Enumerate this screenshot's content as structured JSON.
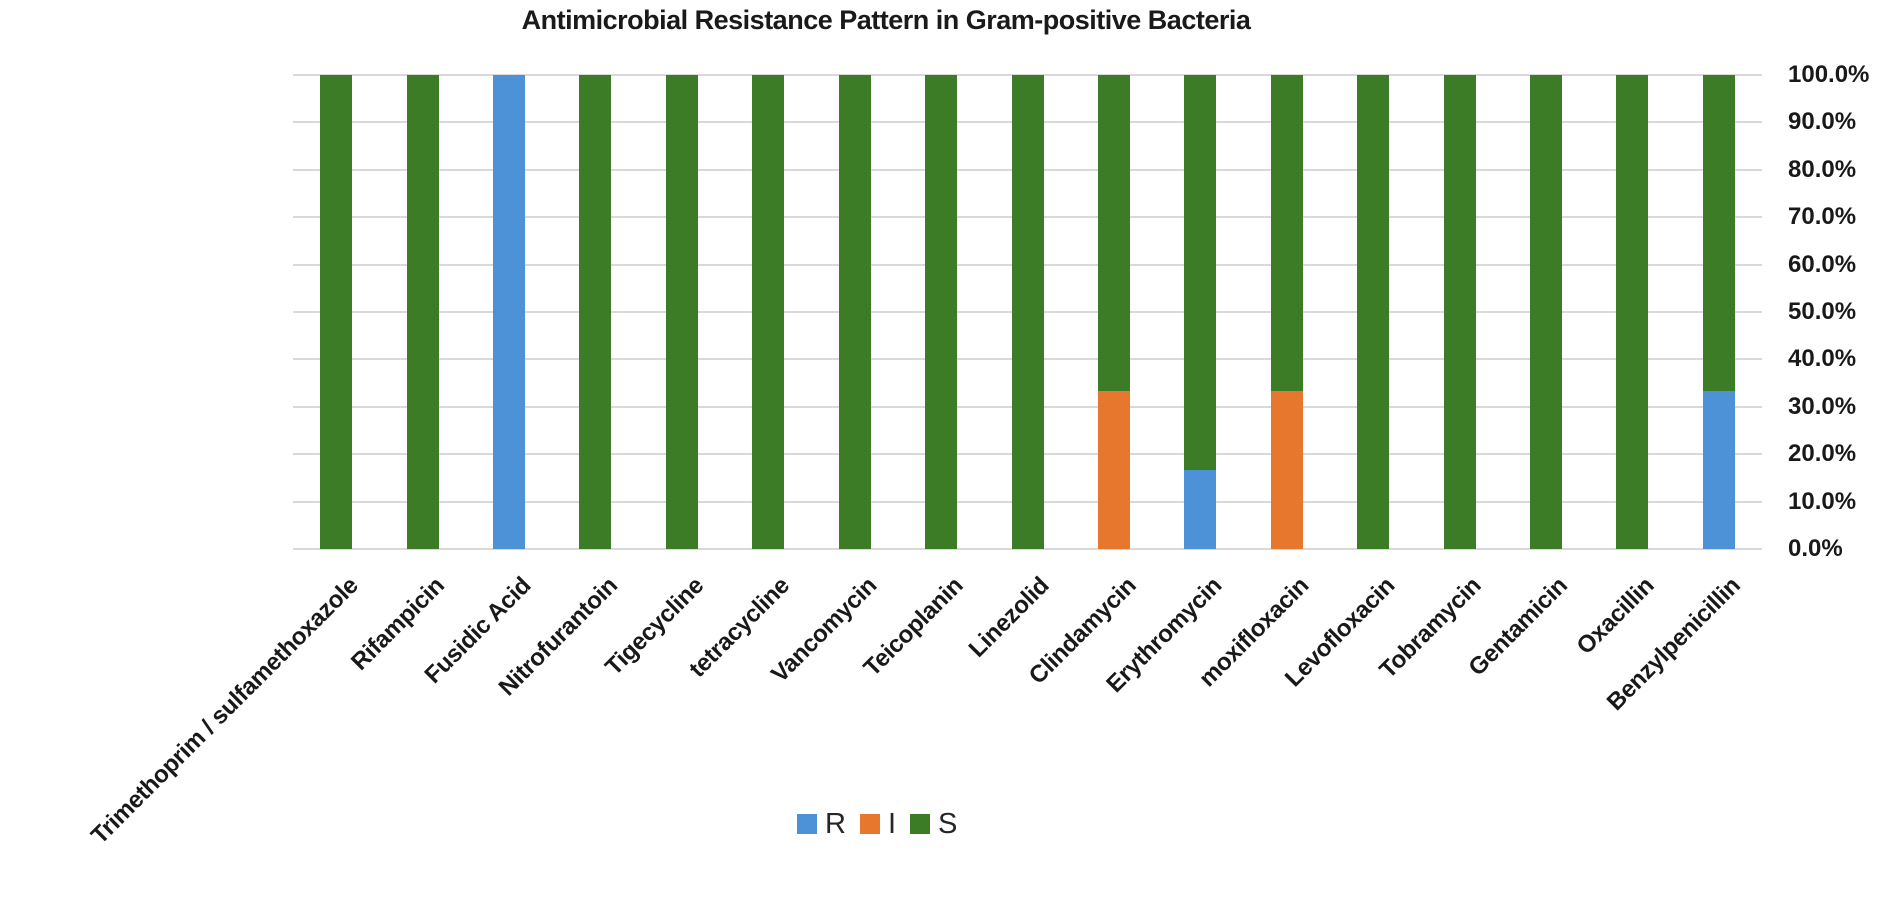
{
  "chart_data": {
    "type": "bar",
    "stacked": true,
    "title": "Antimicrobial Resistance Pattern in Gram-positive Bacteria",
    "categories": [
      "Trimethoprim / sulfamethoxazole",
      "Rifampicin",
      "Fusidic Acid",
      "Nitrofurantoin",
      "Tigecycline",
      "tetracycline",
      "Vancomycin",
      "Teicoplanin",
      "Linezolid",
      "Clindamycin",
      "Erythromycin",
      "moxifloxacin",
      "Levofloxacin",
      "Tobramycin",
      "Gentamicin",
      "Oxacillin",
      "Benzylpenicillin"
    ],
    "series": [
      {
        "name": "R",
        "color": "#4d92d6",
        "values": [
          0,
          0,
          100,
          0,
          0,
          0,
          0,
          0,
          0,
          0,
          16.7,
          0,
          0,
          0,
          0,
          0,
          33.3
        ]
      },
      {
        "name": "I",
        "color": "#e8772e",
        "values": [
          0,
          0,
          0,
          0,
          0,
          0,
          0,
          0,
          0,
          33.3,
          0,
          33.3,
          0,
          0,
          0,
          0,
          0
        ]
      },
      {
        "name": "S",
        "color": "#3d7c26",
        "values": [
          100,
          100,
          0,
          100,
          100,
          100,
          100,
          100,
          100,
          66.7,
          83.3,
          66.7,
          100,
          100,
          100,
          100,
          66.7
        ]
      }
    ],
    "xlabel": "",
    "ylabel": "",
    "ylim": [
      0,
      100
    ],
    "y_ticks_top_to_bottom": [
      "100.0%",
      "90.0%",
      "80.0%",
      "70.0%",
      "60.0%",
      "50.0%",
      "40.0%",
      "30.0%",
      "20.0%",
      "10.0%",
      "0.0%"
    ],
    "grid": true,
    "gridline_color": "#d9d9d9",
    "legend_position": "bottom",
    "legend_items": [
      {
        "label": "R",
        "color": "#4d92d6"
      },
      {
        "label": "I",
        "color": "#e8772e"
      },
      {
        "label": "S",
        "color": "#3d7c26"
      }
    ]
  }
}
